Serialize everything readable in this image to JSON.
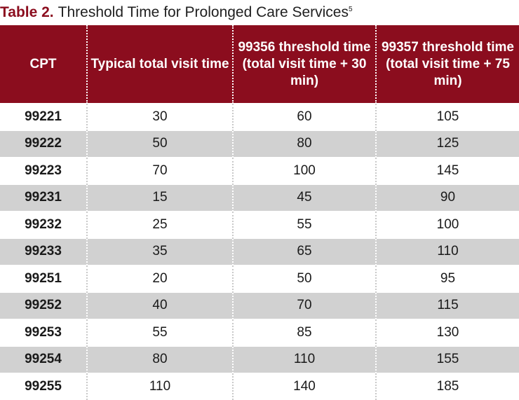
{
  "title": {
    "label": "Table 2.",
    "text": "Threshold Time for Prolonged Care Services",
    "superscript": "5"
  },
  "colors": {
    "header_bg": "#8b0d1e",
    "title_label": "#8b0d1e",
    "alt_row_bg": "#d1d1d1"
  },
  "table": {
    "headers": [
      "CPT",
      "Typical total visit time",
      "99356 threshold time (total visit time + 30 min)",
      "99357 threshold time (total visit time + 75 min)"
    ],
    "rows": [
      [
        "99221",
        "30",
        "60",
        "105"
      ],
      [
        "99222",
        "50",
        "80",
        "125"
      ],
      [
        "99223",
        "70",
        "100",
        "145"
      ],
      [
        "99231",
        "15",
        "45",
        "90"
      ],
      [
        "99232",
        "25",
        "55",
        "100"
      ],
      [
        "99233",
        "35",
        "65",
        "110"
      ],
      [
        "99251",
        "20",
        "50",
        "95"
      ],
      [
        "99252",
        "40",
        "70",
        "115"
      ],
      [
        "99253",
        "55",
        "85",
        "130"
      ],
      [
        "99254",
        "80",
        "110",
        "155"
      ],
      [
        "99255",
        "110",
        "140",
        "185"
      ]
    ]
  }
}
